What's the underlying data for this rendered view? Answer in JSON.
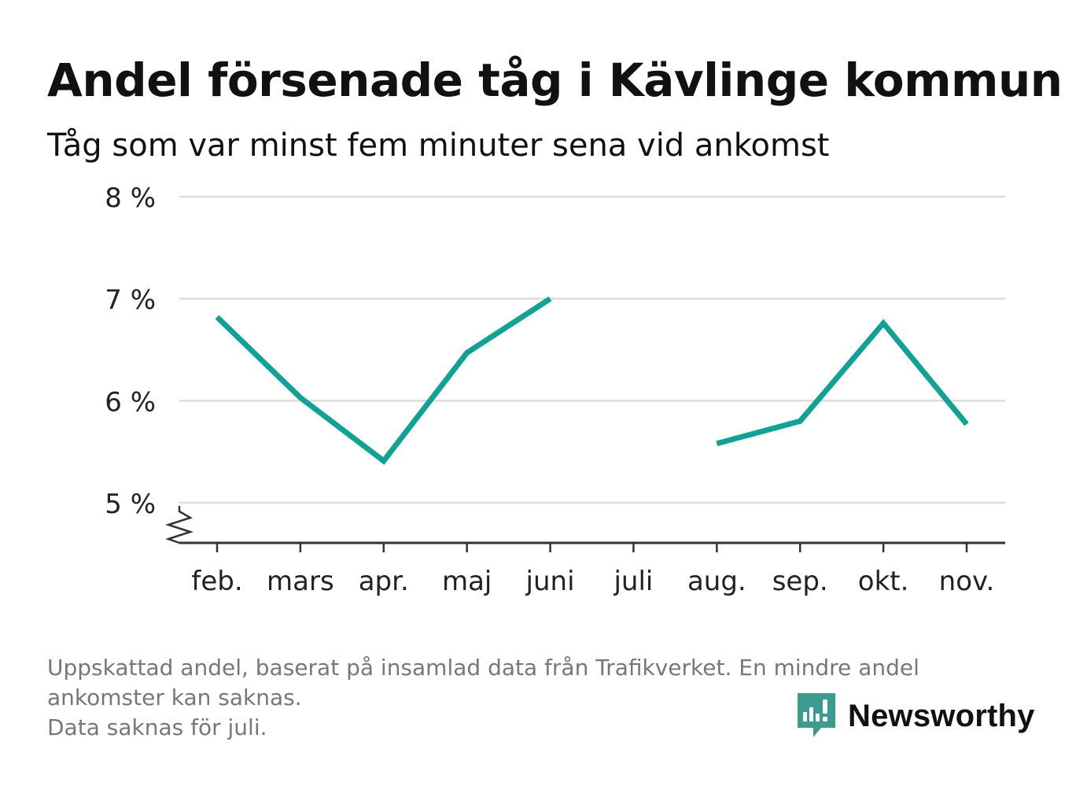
{
  "header": {
    "title": "Andel försenade tåg i Kävlinge kommun",
    "subtitle": "Tåg som var minst fem minuter sena vid ankomst"
  },
  "chart_data": {
    "type": "line",
    "categories": [
      "feb.",
      "mars",
      "apr.",
      "maj",
      "juni",
      "juli",
      "aug.",
      "sep.",
      "okt.",
      "nov."
    ],
    "series": [
      {
        "values": [
          6.82,
          6.03,
          5.41,
          6.47,
          7.0,
          null,
          5.58,
          5.8,
          6.76,
          5.77
        ]
      }
    ],
    "ylim": [
      5,
      8
    ],
    "yticks": [
      5,
      6,
      7,
      8
    ],
    "ytick_labels": [
      "5 %",
      "6 %",
      "7 %",
      "8 %"
    ],
    "axis_break": true,
    "grid": true,
    "legend": "none",
    "colors": {
      "line": "#12a195",
      "grid": "#dddddd",
      "axis": "#333333"
    }
  },
  "footnote": {
    "lines": [
      "Uppskattad andel, baserat på insamlad data från Trafikverket. En mindre andel",
      "ankomster kan saknas.",
      "Data saknas för juli."
    ]
  },
  "brand": {
    "name": "Newsworthy",
    "icon": "newsworthy-logo-icon",
    "color": "#3d9a8f"
  }
}
